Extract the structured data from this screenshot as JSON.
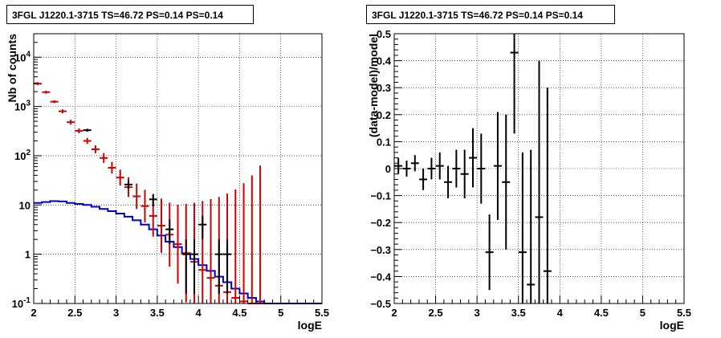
{
  "chart_data": [
    {
      "type": "step-histogram",
      "title": "3FGL J1220.1-3715 TS=46.72 PS=0.14 PS=0.14",
      "xlabel": "logE",
      "ylabel": "Nb of counts",
      "xlim": [
        2,
        5.5
      ],
      "ylim": [
        0.1,
        30000
      ],
      "yscale": "log",
      "grid": true,
      "xticks": [
        "2",
        "2.5",
        "3",
        "3.5",
        "4",
        "4.5",
        "5",
        "5.5"
      ],
      "yticks": [
        "10^-1",
        "1",
        "10",
        "10^2",
        "10^3",
        "10^4"
      ],
      "series": [
        {
          "role": "model",
          "color": "#d00000",
          "x": [
            2.05,
            2.15,
            2.25,
            2.35,
            2.45,
            2.55,
            2.65,
            2.75,
            2.85,
            2.95,
            3.05,
            3.15,
            3.25,
            3.35,
            3.45,
            3.55,
            3.65,
            3.75,
            3.85,
            3.95,
            4.05,
            4.15,
            4.25,
            4.35,
            4.45,
            4.55,
            4.65,
            4.75
          ],
          "y": [
            2900,
            1950,
            1250,
            800,
            480,
            320,
            200,
            135,
            90,
            57,
            36,
            23,
            15,
            9.5,
            6,
            3.8,
            2.5,
            1.6,
            1.05,
            0.7,
            0.48,
            0.33,
            0.23,
            0.17,
            0.13,
            0.11,
            0.1,
            0.1
          ],
          "err": [
            0.03,
            0.03,
            0.03,
            0.04,
            0.05,
            0.05,
            0.06,
            0.08,
            0.1,
            0.12,
            0.16,
            0.2,
            0.26,
            0.33,
            0.42,
            0.55,
            0.65,
            0.8,
            1.0,
            1.2,
            1.4,
            1.6,
            1.8,
            2.0,
            2.2,
            2.4,
            2.6,
            2.8
          ]
        },
        {
          "role": "data",
          "color": "#000000",
          "x": [
            2.65,
            3.15,
            3.45,
            3.65,
            3.85,
            3.95,
            4.05,
            4.25,
            4.35
          ],
          "y": [
            330,
            26,
            13,
            3.2,
            1.0,
            1.0,
            4.0,
            1.0,
            1.0
          ],
          "err_lo": [
            0.03,
            0.09,
            0.14,
            0.3,
            0.8,
            0.8,
            0.3,
            0.8,
            0.8
          ],
          "err_hi": [
            0.03,
            0.08,
            0.11,
            0.2,
            0.3,
            0.3,
            0.18,
            0.3,
            0.3
          ]
        },
        {
          "role": "background",
          "color": "#0000cc",
          "type": "step",
          "edges": [
            2.0,
            2.1,
            2.2,
            2.3,
            2.4,
            2.5,
            2.6,
            2.7,
            2.8,
            2.9,
            3.0,
            3.1,
            3.2,
            3.3,
            3.4,
            3.5,
            3.6,
            3.7,
            3.8,
            3.9,
            4.0,
            4.1,
            4.2,
            4.3,
            4.4,
            4.5,
            4.6,
            4.7,
            4.8,
            4.9,
            5.0,
            5.1,
            5.2,
            5.3,
            5.4,
            5.5
          ],
          "y": [
            11,
            11.5,
            12,
            11.8,
            11,
            10.5,
            10,
            9.2,
            8.3,
            7.5,
            6.7,
            5.8,
            4.9,
            4.0,
            3.2,
            2.4,
            1.8,
            1.4,
            1.05,
            0.8,
            0.6,
            0.46,
            0.35,
            0.27,
            0.2,
            0.16,
            0.13,
            0.11,
            0.1,
            0.1,
            0.1,
            0.1,
            0.1,
            0.1,
            0.1
          ]
        }
      ]
    },
    {
      "type": "errorbar-scatter",
      "title": "3FGL J1220.1-3715 TS=46.72 PS=0.14 PS=0.14",
      "xlabel": "logE",
      "ylabel": "(data-model)/model",
      "xlim": [
        2,
        5.5
      ],
      "ylim": [
        -0.5,
        0.5
      ],
      "grid": true,
      "xticks": [
        "2",
        "2.5",
        "3",
        "3.5",
        "4",
        "4.5",
        "5",
        "5.5"
      ],
      "yticks": [
        "-0.5",
        "-0.4",
        "-0.3",
        "-0.2",
        "-0.1",
        "0",
        "0.1",
        "0.2",
        "0.3",
        "0.4",
        "0.5"
      ],
      "series": [
        {
          "color": "#000000",
          "x": [
            2.05,
            2.15,
            2.25,
            2.35,
            2.45,
            2.55,
            2.65,
            2.75,
            2.85,
            2.95,
            3.05,
            3.15,
            3.25,
            3.35,
            3.45,
            3.55,
            3.65,
            3.75,
            3.85
          ],
          "y": [
            0.01,
            0.0,
            0.02,
            -0.04,
            0.0,
            0.01,
            -0.05,
            0.0,
            -0.02,
            0.04,
            0.0,
            -0.31,
            0.01,
            -0.05,
            0.43,
            -0.31,
            -0.43,
            -0.18,
            -0.38
          ],
          "err": [
            0.03,
            0.03,
            0.03,
            0.04,
            0.04,
            0.05,
            0.06,
            0.07,
            0.09,
            0.11,
            0.13,
            0.14,
            0.2,
            0.25,
            0.3,
            0.37,
            0.5,
            0.58,
            0.68
          ]
        }
      ]
    }
  ]
}
